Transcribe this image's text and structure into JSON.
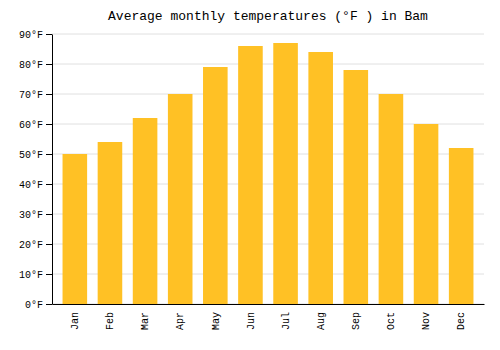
{
  "chart_data": {
    "type": "bar",
    "title": "Average monthly temperatures (°F ) in Bam",
    "categories": [
      "Jan",
      "Feb",
      "Mar",
      "Apr",
      "May",
      "Jun",
      "Jul",
      "Aug",
      "Sep",
      "Oct",
      "Nov",
      "Dec"
    ],
    "values": [
      50,
      54,
      62,
      70,
      79,
      86,
      87,
      84,
      78,
      70,
      60,
      52
    ],
    "color": "#FFC125",
    "ylim": [
      0,
      90
    ],
    "yticks": [
      {
        "value": 0,
        "label": "0°F"
      },
      {
        "value": 10,
        "label": "10°F"
      },
      {
        "value": 20,
        "label": "20°F"
      },
      {
        "value": 30,
        "label": "30°F"
      },
      {
        "value": 40,
        "label": "40°F"
      },
      {
        "value": 50,
        "label": "50°F"
      },
      {
        "value": 60,
        "label": "60°F"
      },
      {
        "value": 70,
        "label": "70°F"
      },
      {
        "value": 80,
        "label": "80°F"
      },
      {
        "value": 90,
        "label": "90°F"
      }
    ],
    "grid": true
  }
}
